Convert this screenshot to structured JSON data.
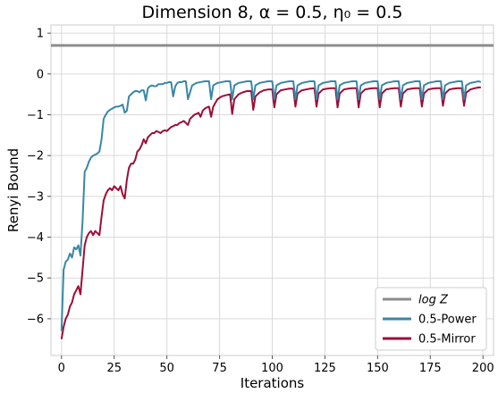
{
  "chart_data": {
    "type": "line",
    "title": "Dimension 8, α = 0.5, η₀ = 0.5",
    "xlabel": "Iterations",
    "ylabel": "Renyi Bound",
    "xlim": [
      -5,
      205
    ],
    "ylim": [
      -6.9,
      1.2
    ],
    "x_ticks": [
      0,
      25,
      50,
      75,
      100,
      125,
      150,
      175,
      200
    ],
    "y_ticks": [
      1,
      0,
      -1,
      -2,
      -3,
      -4,
      -5,
      -6
    ],
    "y_tick_labels": [
      "1",
      "0",
      "−1",
      "−2",
      "−3",
      "−4",
      "−5",
      "−6"
    ],
    "grid": true,
    "legend_position": "bottom-right",
    "colors": {
      "logZ": "#8c8c8c",
      "power": "#3a87a8",
      "mirror": "#9b0f38",
      "grid": "#d9d9d9",
      "frame": "#cccccc"
    },
    "reference_lines": [
      {
        "name": "log Z",
        "y": 0.7
      }
    ],
    "series": [
      {
        "name": "0.5-Power",
        "x": [
          0,
          1,
          2,
          3,
          4,
          5,
          6,
          7,
          8,
          9,
          10,
          11,
          12,
          13,
          14,
          15,
          16,
          17,
          18,
          19,
          20,
          21,
          22,
          23,
          24,
          25,
          26,
          27,
          28,
          29,
          30,
          31,
          32,
          33,
          34,
          35,
          36,
          37,
          38,
          39,
          40,
          41,
          42,
          43,
          44,
          45,
          46,
          47,
          48,
          49,
          50,
          51,
          52,
          53,
          54,
          55,
          56,
          57,
          58,
          59,
          60,
          62,
          64,
          66,
          68,
          70,
          71,
          72,
          74,
          76,
          78,
          80,
          81,
          82,
          84,
          86,
          88,
          90,
          91,
          92,
          94,
          96,
          98,
          100,
          101,
          102,
          104,
          106,
          108,
          110,
          111,
          112,
          114,
          116,
          118,
          120,
          121,
          122,
          124,
          126,
          128,
          130,
          131,
          132,
          134,
          136,
          138,
          140,
          141,
          142,
          144,
          146,
          148,
          150,
          151,
          152,
          154,
          156,
          158,
          160,
          161,
          162,
          164,
          166,
          168,
          170,
          171,
          172,
          174,
          176,
          178,
          180,
          181,
          182,
          184,
          186,
          188,
          190,
          191,
          192,
          194,
          196,
          198,
          199
        ],
        "values": [
          -6.3,
          -4.8,
          -4.6,
          -4.55,
          -4.4,
          -4.5,
          -4.25,
          -4.3,
          -4.2,
          -4.45,
          -3.6,
          -2.4,
          -2.3,
          -2.15,
          -2.05,
          -2.0,
          -1.98,
          -1.95,
          -1.9,
          -1.6,
          -1.1,
          -1.0,
          -0.92,
          -0.88,
          -0.85,
          -0.82,
          -0.8,
          -0.8,
          -0.78,
          -0.75,
          -0.95,
          -0.9,
          -0.55,
          -0.5,
          -0.45,
          -0.42,
          -0.42,
          -0.45,
          -0.4,
          -0.4,
          -0.65,
          -0.35,
          -0.3,
          -0.28,
          -0.3,
          -0.3,
          -0.25,
          -0.25,
          -0.25,
          -0.22,
          -0.22,
          -0.2,
          -0.2,
          -0.55,
          -0.3,
          -0.22,
          -0.2,
          -0.2,
          -0.18,
          -0.18,
          -0.62,
          -0.28,
          -0.22,
          -0.2,
          -0.18,
          -0.18,
          -0.62,
          -0.28,
          -0.22,
          -0.2,
          -0.18,
          -0.18,
          -0.62,
          -0.28,
          -0.22,
          -0.2,
          -0.18,
          -0.18,
          -0.62,
          -0.28,
          -0.22,
          -0.2,
          -0.18,
          -0.18,
          -0.62,
          -0.28,
          -0.22,
          -0.2,
          -0.18,
          -0.18,
          -0.62,
          -0.28,
          -0.22,
          -0.2,
          -0.18,
          -0.18,
          -0.62,
          -0.28,
          -0.22,
          -0.2,
          -0.18,
          -0.18,
          -0.62,
          -0.28,
          -0.22,
          -0.2,
          -0.18,
          -0.18,
          -0.62,
          -0.28,
          -0.22,
          -0.2,
          -0.18,
          -0.18,
          -0.62,
          -0.28,
          -0.22,
          -0.2,
          -0.18,
          -0.18,
          -0.62,
          -0.28,
          -0.22,
          -0.2,
          -0.18,
          -0.18,
          -0.62,
          -0.28,
          -0.22,
          -0.2,
          -0.18,
          -0.18,
          -0.62,
          -0.28,
          -0.22,
          -0.2,
          -0.18,
          -0.18,
          -0.62,
          -0.28,
          -0.22,
          -0.2,
          -0.18,
          -0.2
        ]
      },
      {
        "name": "0.5-Mirror",
        "x": [
          0,
          1,
          2,
          3,
          4,
          5,
          6,
          7,
          8,
          9,
          10,
          11,
          12,
          13,
          14,
          15,
          16,
          17,
          18,
          19,
          20,
          21,
          22,
          23,
          24,
          25,
          26,
          27,
          28,
          29,
          30,
          31,
          32,
          33,
          34,
          35,
          36,
          37,
          38,
          39,
          40,
          41,
          42,
          43,
          44,
          45,
          46,
          47,
          48,
          49,
          50,
          51,
          52,
          53,
          54,
          55,
          56,
          57,
          58,
          59,
          60,
          61,
          62,
          63,
          64,
          65,
          66,
          67,
          68,
          69,
          70,
          71,
          72,
          74,
          76,
          78,
          80,
          81,
          82,
          84,
          86,
          88,
          90,
          91,
          92,
          94,
          96,
          98,
          100,
          101,
          102,
          104,
          106,
          108,
          110,
          111,
          112,
          114,
          116,
          118,
          120,
          121,
          122,
          124,
          126,
          128,
          130,
          131,
          132,
          134,
          136,
          138,
          140,
          141,
          142,
          144,
          146,
          148,
          150,
          151,
          152,
          154,
          156,
          158,
          160,
          161,
          162,
          164,
          166,
          168,
          170,
          171,
          172,
          174,
          176,
          178,
          180,
          181,
          182,
          184,
          186,
          188,
          190,
          191,
          192,
          194,
          196,
          198,
          199
        ],
        "values": [
          -6.5,
          -6.2,
          -6.0,
          -5.9,
          -5.7,
          -5.6,
          -5.4,
          -5.3,
          -5.2,
          -5.4,
          -4.8,
          -4.2,
          -4.0,
          -3.9,
          -3.85,
          -3.95,
          -3.85,
          -3.9,
          -3.95,
          -3.5,
          -3.1,
          -2.95,
          -2.85,
          -2.8,
          -2.85,
          -2.75,
          -2.8,
          -2.85,
          -2.75,
          -2.95,
          -3.05,
          -2.6,
          -2.3,
          -2.2,
          -2.2,
          -2.1,
          -1.9,
          -1.85,
          -1.75,
          -1.6,
          -1.7,
          -1.55,
          -1.5,
          -1.45,
          -1.45,
          -1.4,
          -1.42,
          -1.45,
          -1.4,
          -1.38,
          -1.4,
          -1.35,
          -1.3,
          -1.28,
          -1.25,
          -1.25,
          -1.2,
          -1.18,
          -1.15,
          -1.2,
          -1.25,
          -1.1,
          -1.05,
          -1.0,
          -0.98,
          -0.95,
          -1.05,
          -0.9,
          -0.85,
          -0.82,
          -0.8,
          -1.05,
          -0.8,
          -0.62,
          -0.55,
          -0.52,
          -0.5,
          -0.98,
          -0.62,
          -0.5,
          -0.45,
          -0.42,
          -0.42,
          -0.88,
          -0.55,
          -0.45,
          -0.4,
          -0.38,
          -0.38,
          -0.82,
          -0.5,
          -0.4,
          -0.38,
          -0.36,
          -0.36,
          -0.8,
          -0.48,
          -0.4,
          -0.38,
          -0.36,
          -0.35,
          -0.8,
          -0.48,
          -0.38,
          -0.36,
          -0.35,
          -0.35,
          -0.82,
          -0.48,
          -0.38,
          -0.36,
          -0.35,
          -0.35,
          -0.82,
          -0.48,
          -0.38,
          -0.36,
          -0.35,
          -0.35,
          -0.82,
          -0.48,
          -0.38,
          -0.36,
          -0.35,
          -0.35,
          -0.8,
          -0.48,
          -0.38,
          -0.36,
          -0.35,
          -0.35,
          -0.8,
          -0.48,
          -0.38,
          -0.36,
          -0.35,
          -0.35,
          -0.78,
          -0.48,
          -0.38,
          -0.36,
          -0.35,
          -0.35,
          -0.78,
          -0.46,
          -0.38,
          -0.35,
          -0.33,
          -0.33
        ]
      }
    ]
  }
}
